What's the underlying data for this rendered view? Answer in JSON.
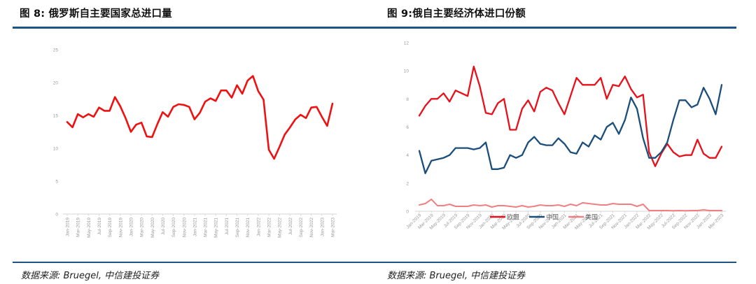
{
  "figures": [
    {
      "title": "图 8: 俄罗斯自主要国家总进口量",
      "source": "数据来源: Bruegel, 中信建投证券"
    },
    {
      "title": "图 9:俄自主要经济体进口份额",
      "source": "数据来源: Bruegel, 中信建投证券"
    }
  ],
  "colors": {
    "rule": "#1c5484",
    "eu": "#e8101a",
    "china": "#1b4e7a",
    "us": "#f07f82",
    "total": "#f01010"
  },
  "chart_data": [
    {
      "type": "line",
      "title": "图 8: 俄罗斯自主要国家总进口量",
      "xlabel": "",
      "ylabel": "",
      "ylim": [
        0,
        25
      ],
      "yticks": [
        0,
        5,
        10,
        15,
        20,
        25
      ],
      "grid": false,
      "legend": null,
      "x": [
        "Jan-2019",
        "Feb-2019",
        "Mar-2019",
        "Apr-2019",
        "May-2019",
        "Jun-2019",
        "Jul-2019",
        "Aug-2019",
        "Sep-2019",
        "Oct-2019",
        "Nov-2019",
        "Dec-2019",
        "Jan-2020",
        "Feb-2020",
        "Mar-2020",
        "Apr-2020",
        "May-2020",
        "Jun-2020",
        "Jul-2020",
        "Aug-2020",
        "Sep-2020",
        "Oct-2020",
        "Nov-2020",
        "Dec-2020",
        "Jan-2021",
        "Feb-2021",
        "Mar-2021",
        "Apr-2021",
        "May-2021",
        "Jun-2021",
        "Jul-2021",
        "Aug-2021",
        "Sep-2021",
        "Oct-2021",
        "Nov-2021",
        "Dec-2021",
        "Jan-2022",
        "Feb-2022",
        "Mar-2022",
        "Apr-2022",
        "May-2022",
        "Jun-2022",
        "Jul-2022",
        "Aug-2022",
        "Sep-2022",
        "Oct-2022",
        "Nov-2022",
        "Dec-2022",
        "Jan-2023",
        "Feb-2023",
        "Mar-2023"
      ],
      "xtick_labels": [
        "Jan-2019",
        "Mar-2019",
        "May-2019",
        "Jul-2019",
        "Sep-2019",
        "Nov-2019",
        "Jan-2020",
        "Mar-2020",
        "May-2020",
        "Jul-2020",
        "Sep-2020",
        "Nov-2020",
        "Jan-2021",
        "Mar-2021",
        "May-2021",
        "Jul-2021",
        "Sep-2021",
        "Nov-2021",
        "Jan-2022",
        "Mar-2022",
        "May-2022",
        "Jul-2022",
        "Sep-2022",
        "Nov-2022",
        "Jan-2023",
        "Mar-2023"
      ],
      "series": [
        {
          "name": "总进口量",
          "color": "#f01010",
          "values": [
            14.0,
            13.2,
            15.2,
            14.7,
            15.2,
            14.8,
            16.2,
            15.7,
            15.7,
            17.8,
            16.4,
            14.6,
            12.5,
            13.6,
            13.9,
            11.8,
            11.7,
            13.7,
            15.5,
            14.8,
            16.3,
            16.7,
            16.6,
            16.3,
            14.4,
            15.4,
            17.1,
            17.6,
            17.2,
            18.8,
            18.8,
            17.7,
            19.6,
            18.3,
            20.3,
            21.0,
            18.7,
            17.4,
            9.8,
            8.4,
            10.2,
            12.1,
            13.2,
            14.4,
            15.1,
            14.6,
            16.2,
            16.3,
            14.8,
            13.4,
            16.8
          ]
        }
      ]
    },
    {
      "type": "line",
      "title": "图 9:俄自主要经济体进口份额",
      "xlabel": "",
      "ylabel": "",
      "ylim": [
        0,
        12
      ],
      "yticks": [
        0,
        2,
        4,
        6,
        8,
        10,
        12
      ],
      "grid": false,
      "legend": {
        "position": "bottom",
        "entries": [
          "欧盟",
          "中国",
          "美国"
        ]
      },
      "x": [
        "Jan-2019",
        "Feb-2019",
        "Mar-2019",
        "Apr-2019",
        "May-2019",
        "Jun-2019",
        "Jul-2019",
        "Aug-2019",
        "Sep-2019",
        "Oct-2019",
        "Nov-2019",
        "Dec-2019",
        "Jan-2020",
        "Feb-2020",
        "Mar-2020",
        "Apr-2020",
        "May-2020",
        "Jun-2020",
        "Jul-2020",
        "Aug-2020",
        "Sep-2020",
        "Oct-2020",
        "Nov-2020",
        "Dec-2020",
        "Jan-2021",
        "Feb-2021",
        "Mar-2021",
        "Apr-2021",
        "May-2021",
        "Jun-2021",
        "Jul-2021",
        "Aug-2021",
        "Sep-2021",
        "Oct-2021",
        "Nov-2021",
        "Dec-2021",
        "Jan-2022",
        "Feb-2022",
        "Mar-2022",
        "Apr-2022",
        "May-2022",
        "Jun-2022",
        "Jul-2022",
        "Aug-2022",
        "Sep-2022",
        "Oct-2022",
        "Nov-2022",
        "Dec-2022",
        "Jan-2023",
        "Feb-2023",
        "Mar-2023"
      ],
      "xtick_labels": [
        "Jan-2019",
        "Mar-2019",
        "May-2019",
        "Jul-2019",
        "Sep-2019",
        "Nov-2019",
        "Jan-2020",
        "Mar-2020",
        "May-2020",
        "Jul-2020",
        "Sep-2020",
        "Nov-2020",
        "Jan-2021",
        "Mar-2021",
        "May-2021",
        "Jul-2021",
        "Sep-2021",
        "Nov-2021",
        "Jan-2022",
        "Mar-2022",
        "May-2022",
        "Jul-2022",
        "Sep-2022",
        "Nov-2022",
        "Jan-2023",
        "Mar-2023"
      ],
      "series": [
        {
          "name": "欧盟",
          "color": "#e8101a",
          "values": [
            6.8,
            7.5,
            8.0,
            8.0,
            8.4,
            7.8,
            8.6,
            8.4,
            8.2,
            10.3,
            8.9,
            7.0,
            6.9,
            7.7,
            8.0,
            5.8,
            5.8,
            7.3,
            7.9,
            7.1,
            8.5,
            8.8,
            8.6,
            7.7,
            6.9,
            8.2,
            9.5,
            9.0,
            9.0,
            9.0,
            9.5,
            8.0,
            9.0,
            8.9,
            9.6,
            8.7,
            8.1,
            8.3,
            4.2,
            3.2,
            4.1,
            4.8,
            4.2,
            3.9,
            4.0,
            4.0,
            5.1,
            4.1,
            3.8,
            3.8,
            4.6
          ]
        },
        {
          "name": "中国",
          "color": "#1b4e7a",
          "values": [
            4.3,
            2.7,
            3.6,
            3.7,
            3.8,
            4.0,
            4.5,
            4.5,
            4.5,
            4.4,
            4.5,
            4.9,
            3.0,
            3.0,
            3.1,
            4.0,
            3.8,
            4.0,
            4.9,
            5.3,
            4.8,
            4.7,
            4.7,
            5.2,
            4.8,
            4.2,
            4.1,
            4.9,
            4.6,
            5.4,
            5.1,
            6.0,
            6.3,
            5.5,
            6.5,
            8.1,
            7.3,
            5.2,
            3.8,
            3.8,
            4.2,
            4.9,
            6.5,
            7.9,
            7.9,
            7.4,
            7.6,
            8.8,
            8.0,
            6.9,
            9.0
          ]
        },
        {
          "name": "美国",
          "color": "#f07f82",
          "values": [
            0.45,
            0.55,
            0.85,
            0.4,
            0.4,
            0.5,
            0.35,
            0.35,
            0.35,
            0.45,
            0.4,
            0.45,
            0.3,
            0.4,
            0.4,
            0.35,
            0.3,
            0.4,
            0.3,
            0.35,
            0.45,
            0.4,
            0.4,
            0.45,
            0.35,
            0.5,
            0.4,
            0.6,
            0.55,
            0.5,
            0.45,
            0.45,
            0.55,
            0.5,
            0.5,
            0.5,
            0.35,
            0.5,
            0.05,
            0.05,
            0.05,
            0.05,
            0.04,
            0.05,
            0.04,
            0.05,
            0.05,
            0.1,
            0.05,
            0.05,
            0.05
          ]
        }
      ]
    }
  ]
}
